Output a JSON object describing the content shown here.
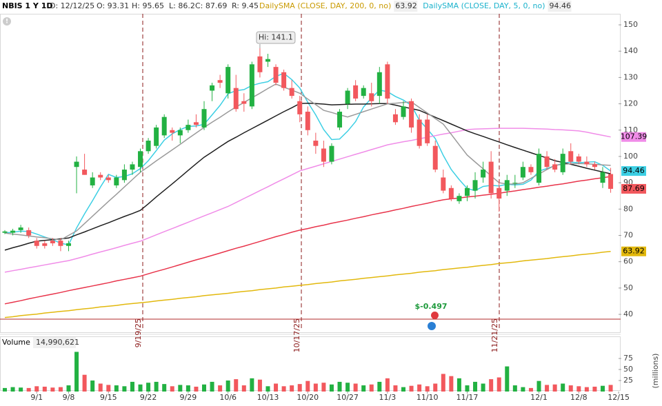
{
  "header": {
    "symbol": "NBIS 1 Y 1D",
    "date": "D: 12/12/25",
    "open": "O: 93.31",
    "high": "H: 95.65",
    "low": "L: 86.2",
    "close": "C: 87.69",
    "range": "R: 9.45"
  },
  "chart_data": [
    {
      "type": "candlestick",
      "categories": [
        null,
        null,
        null,
        null,
        "9/1",
        null,
        null,
        null,
        "9/8",
        null,
        null,
        null,
        null,
        "9/15",
        null,
        null,
        null,
        null,
        "9/22",
        null,
        null,
        null,
        null,
        "9/29",
        null,
        null,
        null,
        null,
        "10/6",
        null,
        null,
        null,
        null,
        "10/13",
        null,
        null,
        null,
        null,
        "10/20",
        null,
        null,
        null,
        null,
        "10/27",
        null,
        null,
        null,
        null,
        "11/3",
        null,
        null,
        null,
        null,
        "11/10",
        null,
        null,
        null,
        null,
        "11/17",
        null,
        null,
        null,
        null,
        null,
        null,
        null,
        null,
        "12/1",
        null,
        null,
        null,
        null,
        "12/8",
        null,
        null,
        null,
        null,
        "12/15"
      ],
      "open": [
        71,
        71,
        72,
        72,
        68,
        67,
        68,
        68,
        66,
        96,
        95,
        89,
        93,
        92,
        89,
        91,
        95,
        96,
        102,
        104,
        108,
        110,
        108,
        110,
        113,
        111,
        125,
        129,
        124,
        126,
        121,
        119,
        138,
        136,
        134,
        132,
        126,
        121,
        117,
        106,
        103,
        98,
        111,
        120,
        127,
        123,
        124,
        123,
        135,
        116,
        115,
        121,
        114,
        114,
        104,
        92,
        88,
        83,
        85,
        87,
        92,
        98,
        88,
        87,
        90,
        92,
        96,
        90,
        100,
        97,
        94,
        102,
        100,
        98,
        97,
        90,
        93.31,
        null
      ],
      "high": [
        72,
        72.5,
        74,
        73,
        69,
        68,
        69,
        69,
        68,
        100,
        101,
        94,
        94,
        93,
        93,
        97,
        98,
        103,
        107,
        112,
        116,
        111,
        111,
        114,
        116,
        121,
        128,
        131,
        135,
        131,
        124,
        136,
        141.1,
        139,
        135,
        133,
        129,
        123,
        119,
        109,
        106,
        105,
        118,
        126,
        129,
        127,
        128,
        134,
        136,
        118,
        121,
        122,
        116,
        116,
        106,
        95,
        89,
        86,
        89,
        94,
        98,
        102,
        91,
        93,
        93,
        98,
        97,
        103,
        102,
        99,
        103,
        105,
        101,
        100,
        98,
        96,
        95.65,
        null
      ],
      "low": [
        70.5,
        70,
        71,
        69,
        65,
        65,
        66,
        64,
        64,
        86,
        93,
        88,
        91,
        90,
        88,
        90,
        93,
        94,
        101,
        103,
        107,
        106,
        105,
        109,
        111,
        110,
        121,
        126,
        122,
        117,
        117,
        118,
        130,
        134,
        127,
        125,
        122,
        113,
        108,
        101,
        96,
        97,
        110,
        118,
        121,
        122,
        119,
        120,
        120,
        112,
        114,
        109,
        103,
        104,
        94,
        86,
        83,
        82,
        83,
        84,
        90,
        84,
        79,
        85,
        88,
        91,
        93,
        89,
        95,
        94,
        93,
        97,
        97,
        96,
        95,
        88,
        86.2,
        null
      ],
      "close": [
        71.5,
        71.8,
        73,
        70,
        66,
        66,
        67,
        66,
        67,
        98,
        93,
        92,
        92,
        91,
        92,
        95,
        97,
        102,
        106,
        111,
        115,
        109,
        110,
        112,
        112,
        118,
        127,
        128,
        134,
        118,
        120,
        135,
        132,
        137,
        128,
        126,
        123,
        116,
        110,
        104,
        98,
        104,
        117,
        125,
        122,
        126,
        121,
        132,
        122,
        113,
        119,
        111,
        104,
        105,
        95,
        87,
        84,
        85,
        88,
        91,
        95,
        86,
        84,
        91,
        90,
        96,
        94,
        101,
        96,
        95,
        101,
        98,
        98,
        97,
        96,
        94,
        87.69,
        null
      ],
      "up_color": "#22b142",
      "down_color": "#f2585d",
      "ylim": [
        33.2,
        154.2
      ],
      "yticks": [
        40,
        50,
        60,
        70,
        80,
        90,
        100,
        110,
        120,
        130,
        140,
        150
      ],
      "series": [
        {
          "name": "DailySMA (CLOSE, DAY, 200, 0, no)",
          "color": "#e2b80c",
          "last_value_tag": true,
          "values": [
            38.8,
            39.1,
            39.5,
            39.8,
            40.1,
            40.5,
            40.8,
            41.1,
            41.4,
            41.8,
            42.1,
            42.4,
            42.8,
            43.1,
            43.4,
            43.8,
            44.1,
            44.4,
            44.7,
            45.1,
            45.4,
            45.7,
            46.1,
            46.4,
            46.7,
            47.1,
            47.4,
            47.7,
            48.0,
            48.4,
            48.7,
            49.0,
            49.4,
            49.7,
            50.0,
            50.4,
            50.7,
            51.0,
            51.3,
            51.7,
            52.0,
            52.3,
            52.7,
            53.0,
            53.3,
            53.7,
            54.0,
            54.3,
            54.6,
            55.0,
            55.3,
            55.6,
            56.0,
            56.3,
            56.6,
            57.0,
            57.3,
            57.6,
            57.9,
            58.3,
            58.6,
            58.9,
            59.3,
            59.6,
            59.9,
            60.3,
            60.6,
            60.9,
            61.2,
            61.6,
            61.9,
            62.2,
            62.6,
            62.9,
            63.2,
            63.6,
            63.92,
            null
          ]
        },
        {
          "name": "DailySMA (CLOSE, DAY, 5, 0, no)",
          "color": "#3ccfe4",
          "last_value_tag": true,
          "values": [
            71,
            71.2,
            71.6,
            71.5,
            70.5,
            69.4,
            68.4,
            67,
            66.4,
            72.8,
            78.2,
            83.2,
            88.4,
            93.2,
            92,
            92.4,
            93.4,
            95.4,
            98.4,
            102.2,
            106.2,
            108.6,
            110.2,
            111.4,
            111.6,
            112.2,
            115.8,
            119.4,
            123.8,
            125,
            125.4,
            127,
            127.8,
            128.4,
            130.4,
            131.6,
            129.2,
            126,
            120.6,
            115.8,
            110.2,
            106.4,
            106.6,
            109.6,
            113.2,
            118.8,
            122.2,
            125.2,
            124.6,
            122.8,
            121.4,
            119.4,
            113.8,
            110.4,
            106.8,
            100.4,
            95,
            91.2,
            87.8,
            87,
            88.6,
            89,
            88.8,
            89.4,
            89.2,
            89.4,
            91,
            94.4,
            95.4,
            96.4,
            97.4,
            97.8,
            97.6,
            97.8,
            98,
            96.6,
            94.46,
            null
          ]
        },
        {
          "color": "#e8334a",
          "values": [
            44,
            44.6,
            45.2,
            45.9,
            46.5,
            47.1,
            47.7,
            48.3,
            49,
            49.6,
            50.2,
            50.8,
            51.4,
            52,
            52.7,
            53.3,
            53.9,
            54.5,
            55.4,
            56.3,
            57.1,
            58,
            58.9,
            59.8,
            60.7,
            61.5,
            62.4,
            63.3,
            64.2,
            65.1,
            65.9,
            66.8,
            67.7,
            68.6,
            69.5,
            70.3,
            71.2,
            72,
            72.6,
            73.3,
            73.9,
            74.6,
            75.2,
            75.8,
            76.5,
            77.1,
            77.8,
            78.4,
            79,
            79.7,
            80.3,
            81,
            81.6,
            82.2,
            82.9,
            83.5,
            83.9,
            84.2,
            84.6,
            84.9,
            85.3,
            85.6,
            86,
            86.5,
            86.9,
            87.4,
            87.8,
            88.3,
            88.7,
            89.2,
            89.6,
            90.1,
            90.6,
            91,
            91.5,
            91.9,
            92.4,
            null
          ]
        },
        {
          "color": "#f08ce8",
          "last_value_tag": true,
          "values": [
            56,
            56.6,
            57.1,
            57.7,
            58.2,
            58.8,
            59.3,
            59.9,
            60.4,
            61.2,
            62,
            62.9,
            63.7,
            64.5,
            65.3,
            66.2,
            67,
            67.8,
            69,
            70.2,
            71.4,
            72.6,
            73.8,
            75,
            76.2,
            77.4,
            78.6,
            79.8,
            81,
            82.5,
            84,
            85.5,
            87,
            88.5,
            90,
            91.5,
            93,
            94.5,
            95.4,
            96.3,
            97.2,
            98.1,
            99,
            99.9,
            100.8,
            101.7,
            102.6,
            103.5,
            104.4,
            105,
            105.6,
            106.1,
            106.7,
            107.3,
            107.9,
            108.5,
            109,
            109.6,
            110.2,
            110.4,
            110.5,
            110.6,
            110.7,
            110.7,
            110.7,
            110.7,
            110.6,
            110.5,
            110.4,
            110.2,
            110.1,
            109.9,
            109.7,
            109.2,
            108.6,
            108,
            107.39,
            null
          ]
        },
        {
          "color": "#1e1e1e",
          "values": [
            64.4,
            65.3,
            66.1,
            67,
            67.8,
            68.1,
            68.4,
            68.7,
            69,
            70.2,
            71.3,
            72.5,
            73.7,
            74.8,
            76,
            77.2,
            78.3,
            79.5,
            82,
            84.6,
            87.1,
            89.6,
            92.1,
            94.7,
            97.2,
            99.7,
            101.7,
            103.7,
            105.7,
            107.3,
            109,
            110.6,
            112.2,
            113.8,
            115.4,
            117,
            118.5,
            120.1,
            120.2,
            120.1,
            119.9,
            119.6,
            119.7,
            119.8,
            119.9,
            119.9,
            120,
            120.1,
            120.1,
            119.5,
            118.8,
            118.2,
            117.5,
            116.2,
            114.9,
            113.6,
            112.3,
            111,
            109.7,
            108.6,
            107.6,
            106.5,
            105.5,
            104.4,
            103.4,
            102.4,
            101.4,
            100.4,
            99.4,
            98.4,
            97.7,
            97,
            96.3,
            95.5,
            94.8,
            94.1,
            93.4,
            null
          ]
        },
        {
          "color": "#9a9a9a",
          "values": [
            70.9,
            70.5,
            70.2,
            69.8,
            69.4,
            69.1,
            68.7,
            68.3,
            70,
            71.7,
            74.5,
            77.3,
            80.1,
            82.9,
            85.6,
            88.4,
            91.2,
            94,
            96.1,
            98.3,
            100.4,
            102.5,
            104.6,
            106.8,
            108.9,
            111,
            113,
            114.9,
            116.9,
            118.8,
            120.5,
            122.3,
            124,
            125.8,
            127.5,
            126.3,
            125.2,
            124,
            121.8,
            119.7,
            117.5,
            116.7,
            115.8,
            115,
            116,
            117,
            118,
            119,
            120,
            120.2,
            120.5,
            120.7,
            118.6,
            116.5,
            114.4,
            112.3,
            108.4,
            104.4,
            100.5,
            97.9,
            95.3,
            92.6,
            90,
            89.5,
            89.5,
            90,
            91.7,
            93.3,
            95,
            96.6,
            97,
            97.2,
            97.3,
            97.2,
            97,
            96.8,
            96.6,
            null
          ]
        }
      ],
      "annotations": {
        "high": "Hi: 141.1",
        "dividend": "$-0.497"
      },
      "event_labels": [
        "9/19/25",
        "10/17/25",
        "11/21/25"
      ]
    },
    {
      "type": "bar",
      "title": "Volume",
      "total_label": "14,990,621",
      "y_label": "(millions)",
      "categories": [
        null,
        null,
        null,
        null,
        "9/1",
        null,
        null,
        null,
        "9/8",
        null,
        null,
        null,
        null,
        "9/15",
        null,
        null,
        null,
        null,
        "9/22",
        null,
        null,
        null,
        null,
        "9/29",
        null,
        null,
        null,
        null,
        "10/6",
        null,
        null,
        null,
        null,
        "10/13",
        null,
        null,
        null,
        null,
        "10/20",
        null,
        null,
        null,
        null,
        "10/27",
        null,
        null,
        null,
        null,
        "11/3",
        null,
        null,
        null,
        null,
        "11/10",
        null,
        null,
        null,
        null,
        "11/17",
        null,
        null,
        null,
        null,
        null,
        null,
        null,
        null,
        "12/1",
        null,
        null,
        null,
        null,
        "12/8",
        null,
        null,
        null,
        null,
        "12/15"
      ],
      "values": [
        8,
        10,
        9,
        8,
        12,
        11,
        9,
        10,
        14,
        90,
        38,
        25,
        18,
        15,
        14,
        12,
        22,
        16,
        20,
        22,
        17,
        12,
        15,
        14,
        11,
        16,
        22,
        14,
        25,
        28,
        14,
        30,
        27,
        12,
        18,
        12,
        14,
        17,
        24,
        18,
        20,
        16,
        22,
        20,
        18,
        14,
        16,
        22,
        30,
        14,
        10,
        13,
        16,
        12,
        18,
        40,
        35,
        30,
        14,
        22,
        18,
        28,
        32,
        57,
        14,
        10,
        8,
        24,
        15,
        16,
        18,
        14,
        12,
        10,
        11,
        13,
        14.990621,
        null
      ],
      "ylim": [
        0,
        122
      ],
      "yticks": [
        25,
        50,
        75
      ]
    }
  ]
}
